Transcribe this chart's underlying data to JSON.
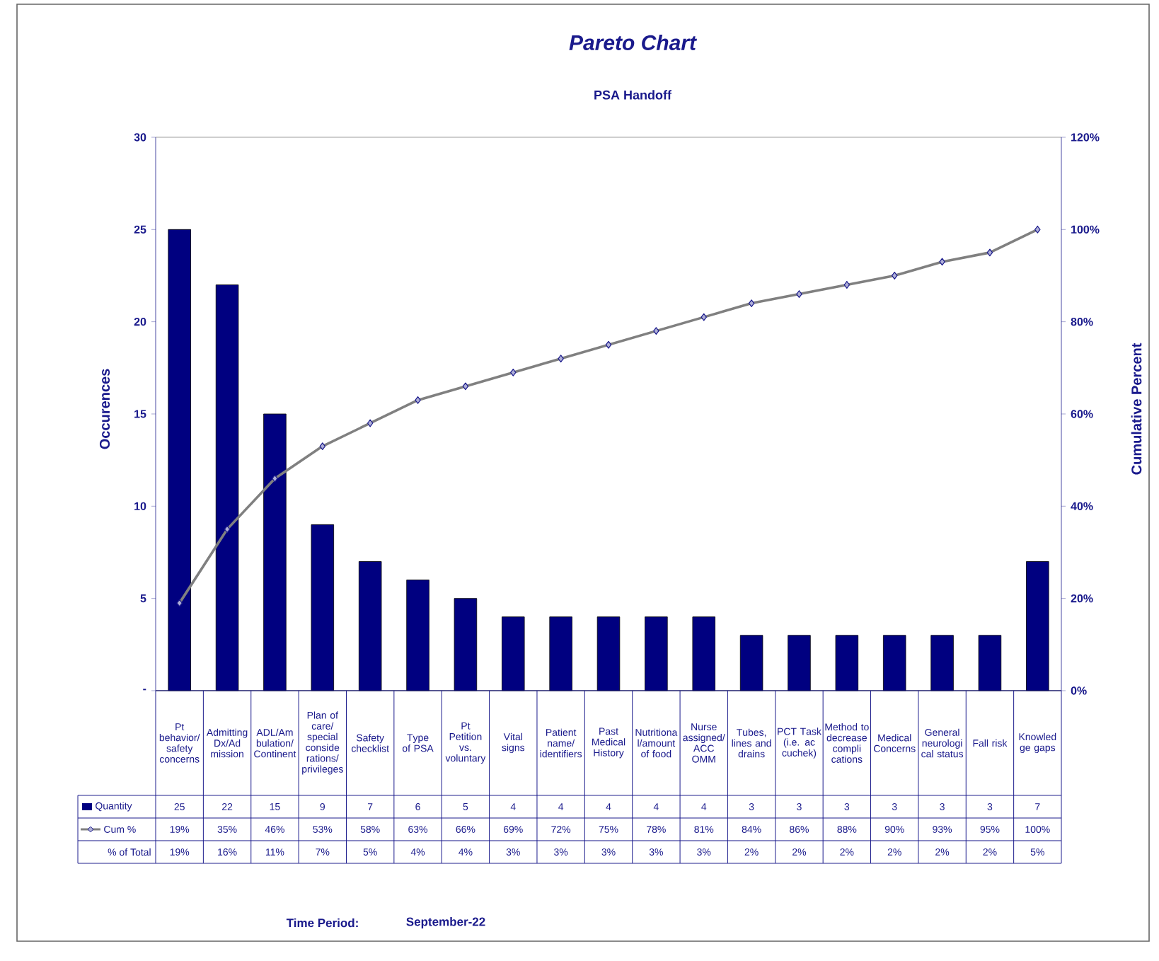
{
  "chart_data": {
    "type": "bar",
    "title": "Pareto Chart",
    "subtitle": "PSA Handoff",
    "ylabel": "Occurences",
    "y2label": "Cumulative Percent",
    "categories": [
      "Pt behavior/safety concerns",
      "Admitting Dx/Admission",
      "ADL/Ambulation/Continent",
      "Plan of care/special considerations/privileges",
      "Safety checklist",
      "Type of PSA",
      "Pt Petition vs. voluntary",
      "Vital signs",
      "Patient name/identifiers",
      "Past Medical History",
      "Nutritional/amount of food",
      "Nurse assigned/ACCOMM",
      "Tubes, lines and drains",
      "PCT Task (i.e. accuchek)",
      "Method to decrease complications",
      "Medical Concerns",
      "General neurological status",
      "Fall risk",
      "Knowledge gaps"
    ],
    "series": [
      {
        "name": "Quantity",
        "color": "#000080",
        "values": [
          25,
          22,
          15,
          9,
          7,
          6,
          5,
          4,
          4,
          4,
          4,
          4,
          3,
          3,
          3,
          3,
          3,
          3,
          7
        ]
      },
      {
        "name": "Cum %",
        "type": "line",
        "axis": "y2",
        "color": "#808080",
        "marker": "diamond",
        "values": [
          19,
          35,
          46,
          53,
          58,
          63,
          66,
          69,
          72,
          75,
          78,
          81,
          84,
          86,
          88,
          90,
          93,
          95,
          100
        ],
        "value_labels": [
          "19%",
          "35%",
          "46%",
          "53%",
          "58%",
          "63%",
          "66%",
          "69%",
          "72%",
          "75%",
          "78%",
          "81%",
          "84%",
          "86%",
          "88%",
          "90%",
          "93%",
          "95%",
          "100%"
        ]
      }
    ],
    "ylim": [
      0,
      30
    ],
    "yticks": [
      {
        "value": 0,
        "label": "-"
      },
      5,
      10,
      15,
      20,
      25,
      30
    ],
    "y2lim": [
      0,
      120
    ],
    "y2ticks": [
      {
        "value": 0,
        "label": "0%"
      },
      {
        "value": 20,
        "label": "20%"
      },
      {
        "value": 40,
        "label": "40%"
      },
      {
        "value": 60,
        "label": "60%"
      },
      {
        "value": 80,
        "label": "80%"
      },
      {
        "value": 100,
        "label": "100%"
      },
      {
        "value": 120,
        "label": "120%"
      }
    ],
    "data_labels": true,
    "legend": "bottom",
    "line_style": "solid",
    "annotations": [
      "% of Total",
      "19%",
      "16%",
      "11%",
      "7%",
      "5%",
      "4%",
      "4%",
      "3%",
      "3%",
      "3%",
      "3%",
      "3%",
      "2%",
      "2%",
      "2%",
      "2%",
      "2%",
      "2%",
      "5%",
      "Time Period:",
      "September-22"
    ]
  }
}
